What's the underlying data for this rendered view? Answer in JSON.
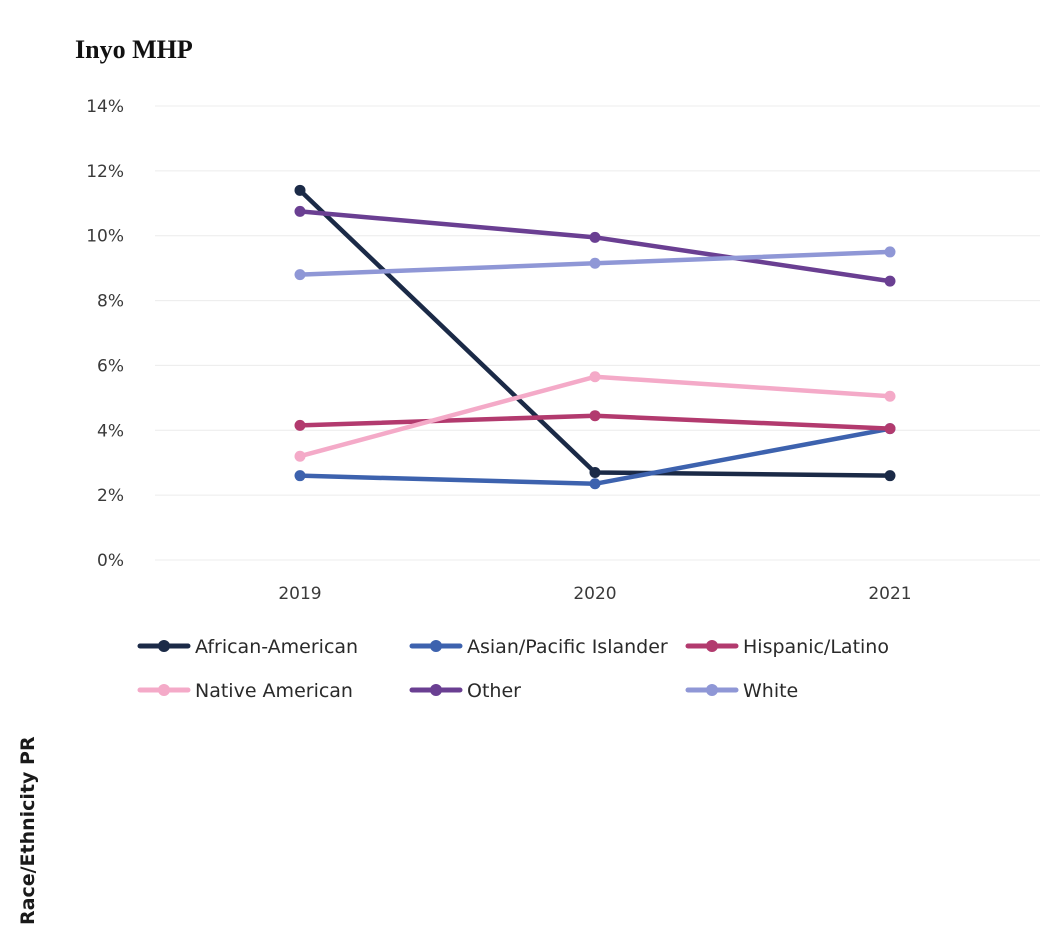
{
  "side_label": "Race/Ethnicity PR",
  "chart_data": {
    "type": "line",
    "title": "Inyo MHP",
    "x": [
      "2019",
      "2020",
      "2021"
    ],
    "ylim": [
      0,
      14
    ],
    "yticks": [
      0,
      2,
      4,
      6,
      8,
      10,
      12,
      14
    ],
    "ytick_labels": [
      "0%",
      "2%",
      "4%",
      "6%",
      "8%",
      "10%",
      "12%",
      "14%"
    ],
    "grid": true,
    "legend_position": "bottom",
    "series": [
      {
        "name": "African-American",
        "values": [
          11.4,
          2.7,
          2.6
        ],
        "color": "#1b2a47"
      },
      {
        "name": "Asian/Pacific Islander",
        "values": [
          2.6,
          2.35,
          4.05
        ],
        "color": "#3d62ae"
      },
      {
        "name": "Hispanic/Latino",
        "values": [
          4.15,
          4.45,
          4.05
        ],
        "color": "#b23a6e"
      },
      {
        "name": "Native American",
        "values": [
          3.2,
          5.65,
          5.05
        ],
        "color": "#f4aac8"
      },
      {
        "name": "Other",
        "values": [
          10.75,
          9.95,
          8.6
        ],
        "color": "#6a3f92"
      },
      {
        "name": "White",
        "values": [
          8.8,
          9.15,
          9.5
        ],
        "color": "#8f97d6"
      }
    ]
  }
}
